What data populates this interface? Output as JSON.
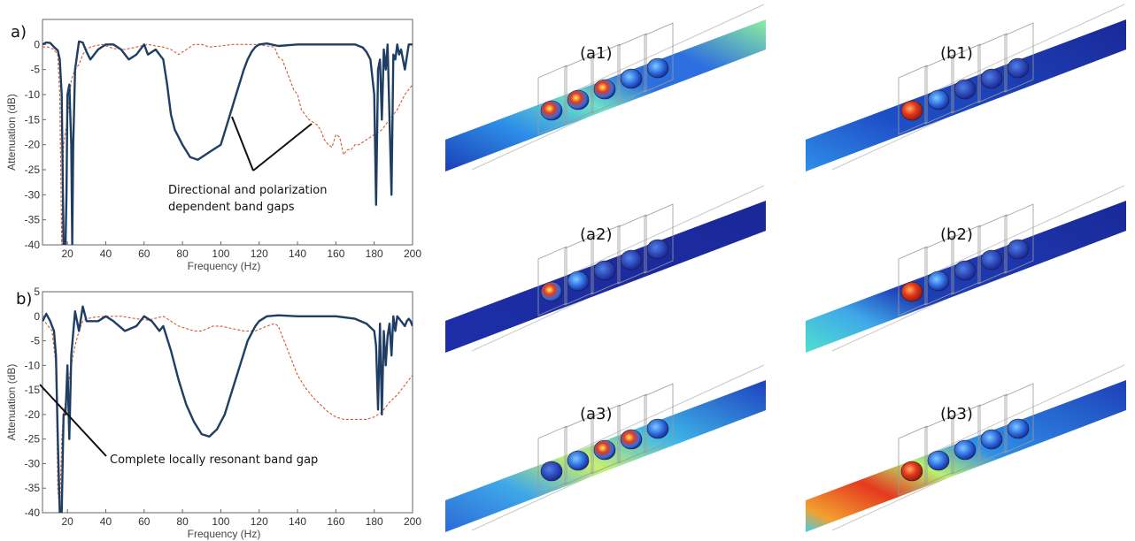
{
  "chart_data": [
    {
      "type": "line",
      "panel_label": "a)",
      "xlabel": "Frequency (Hz)",
      "ylabel": "Attenuation (dB)",
      "xlim": [
        7,
        200
      ],
      "ylim": [
        -40,
        5
      ],
      "xticks": [
        20,
        40,
        60,
        80,
        100,
        120,
        140,
        160,
        180,
        200
      ],
      "yticks": [
        0,
        -5,
        -10,
        -15,
        -20,
        -25,
        -30,
        -35,
        -40
      ],
      "grid": false,
      "annotation": [
        "Directional and polarization",
        "dependent band gaps"
      ],
      "series": [
        {
          "style": "solid",
          "color": "#1f3e63",
          "x": [
            7,
            9,
            11,
            13,
            15,
            16,
            17,
            18,
            18.5,
            19,
            19.5,
            20,
            21,
            22,
            22.5,
            23,
            24,
            26,
            28,
            30,
            32,
            36,
            40,
            44,
            48,
            52,
            56,
            60,
            62,
            66,
            70,
            72,
            74,
            76,
            80,
            84,
            88,
            92,
            96,
            100,
            104,
            108,
            112,
            114,
            116,
            118,
            120,
            124,
            130,
            140,
            150,
            160,
            170,
            174,
            176,
            178,
            180,
            181,
            182,
            183,
            184,
            185,
            186,
            187,
            188,
            189,
            190,
            191,
            192,
            193,
            194,
            196,
            198,
            200
          ],
          "y": [
            0,
            0.4,
            0.3,
            -0.5,
            -1.2,
            -3,
            -10,
            -40,
            -40,
            -40,
            -30,
            -10,
            -8,
            -20,
            -40,
            -20,
            -5,
            0.6,
            0.4,
            -1.5,
            -3,
            -1,
            0,
            0,
            -1,
            -3,
            -2,
            0,
            -2,
            -1,
            -3,
            -8,
            -14,
            -17,
            -20,
            -22.5,
            -23,
            -22,
            -21,
            -20,
            -15,
            -10,
            -5,
            -3,
            -1.5,
            -0.5,
            0,
            0.2,
            -0.3,
            0,
            0,
            0,
            0,
            -0.6,
            -1.5,
            -3,
            -10,
            -32,
            -5,
            -3,
            -15,
            -1,
            -5,
            0,
            -15,
            -30,
            -2,
            -3,
            0,
            -2,
            -1,
            -5,
            0,
            0
          ]
        },
        {
          "style": "dashed",
          "color": "#d35a30",
          "x": [
            7,
            10,
            13,
            15,
            16,
            17,
            18,
            20,
            22,
            24,
            26,
            28,
            30,
            32,
            34,
            38,
            44,
            50,
            56,
            62,
            66,
            70,
            74,
            76,
            78,
            82,
            86,
            90,
            94,
            100,
            106,
            112,
            118,
            124,
            128,
            130,
            132,
            134,
            136,
            138,
            140,
            142,
            144,
            146,
            148,
            150,
            152,
            154,
            156,
            158,
            160,
            162,
            164,
            166,
            168,
            170,
            172,
            176,
            180,
            184,
            188,
            192,
            196,
            200
          ],
          "y": [
            -0.5,
            -0.5,
            -1,
            -2,
            -10,
            -40,
            -20,
            -15,
            -7,
            -5,
            -4,
            -2,
            -1,
            -0.5,
            -0.3,
            0,
            -0.8,
            -1,
            -0.5,
            0,
            -0.3,
            -0.5,
            -1,
            -1.5,
            -2,
            -1,
            0,
            0,
            -0.5,
            -0.3,
            0,
            0,
            0,
            -0.3,
            -0.5,
            -2.5,
            -3,
            -5,
            -7,
            -9,
            -10,
            -13,
            -14,
            -15,
            -15.5,
            -16,
            -17,
            -19,
            -20,
            -20.5,
            -18,
            -18.5,
            -22,
            -21,
            -21,
            -20,
            -20,
            -19,
            -18,
            -17,
            -15,
            -13,
            -10,
            -8
          ]
        }
      ]
    },
    {
      "type": "line",
      "panel_label": "b)",
      "xlabel": "Frequency (Hz)",
      "ylabel": "Attenuation (dB)",
      "xlim": [
        7,
        200
      ],
      "ylim": [
        -40,
        5
      ],
      "xticks": [
        20,
        40,
        60,
        80,
        100,
        120,
        140,
        160,
        180,
        200
      ],
      "yticks": [
        5,
        0,
        -5,
        -10,
        -15,
        -20,
        -25,
        -30,
        -35,
        -40
      ],
      "grid": false,
      "annotation": [
        "Complete locally resonant band gap"
      ],
      "series": [
        {
          "style": "solid",
          "color": "#1f3e63",
          "x": [
            7,
            9,
            11,
            12,
            13,
            14,
            15,
            16,
            17,
            18,
            19,
            20,
            21,
            22,
            24,
            26,
            28,
            30,
            32,
            36,
            40,
            44,
            50,
            56,
            60,
            64,
            68,
            70,
            74,
            78,
            82,
            86,
            90,
            94,
            98,
            102,
            106,
            110,
            114,
            118,
            120,
            124,
            130,
            140,
            150,
            160,
            170,
            176,
            180,
            181,
            182,
            183,
            184,
            185,
            186,
            187,
            188,
            189,
            190,
            191,
            192,
            194,
            196,
            197,
            198,
            199,
            200
          ],
          "y": [
            -1,
            0.5,
            -1,
            -2,
            -3,
            -8,
            -25,
            -40,
            -40,
            -20,
            -20,
            -10,
            -25,
            -8,
            1,
            -3,
            2,
            -1,
            -1,
            -1,
            0,
            -1,
            -3,
            -2,
            0,
            -1,
            -3,
            -2,
            -7,
            -13,
            -18,
            -21.5,
            -24,
            -24.5,
            -23,
            -20,
            -15,
            -10,
            -5,
            -2,
            -1,
            0,
            0.2,
            0,
            0,
            0,
            -0.5,
            -1.5,
            -3,
            -6,
            -19,
            -1.5,
            -20,
            -3,
            -10,
            -4,
            -1.5,
            -8,
            0,
            -3,
            0,
            -1,
            -2,
            -1,
            -0.5,
            -1,
            -2
          ]
        },
        {
          "style": "dashed",
          "color": "#d35a30",
          "x": [
            7,
            10,
            12,
            14,
            15,
            16,
            17,
            18,
            20,
            22,
            24,
            26,
            28,
            30,
            34,
            40,
            48,
            56,
            62,
            68,
            70,
            74,
            78,
            82,
            86,
            90,
            96,
            100,
            106,
            112,
            118,
            124,
            128,
            130,
            132,
            134,
            136,
            138,
            140,
            144,
            148,
            152,
            156,
            160,
            164,
            168,
            172,
            176,
            180,
            184,
            188,
            192,
            196,
            200
          ],
          "y": [
            -0.5,
            -2,
            -3,
            -10,
            -35,
            -40,
            -25,
            -20,
            -15,
            -10,
            -6,
            -3,
            -1,
            -0.5,
            -0.2,
            0,
            0,
            -0.5,
            -0.8,
            -0.2,
            0,
            -1,
            -2,
            -2.5,
            -3,
            -3,
            -2,
            -2,
            -2.5,
            -3,
            -3,
            -2,
            -1.5,
            -2,
            -4,
            -6,
            -8,
            -10,
            -12,
            -14.5,
            -16.5,
            -18,
            -19.5,
            -20.5,
            -21,
            -21,
            -21,
            -21,
            -20.5,
            -19.5,
            -17.5,
            -16,
            -14,
            -12
          ]
        }
      ]
    }
  ],
  "simulations": {
    "labels": {
      "a1": "(a1)",
      "a2": "(a2)",
      "a3": "(a3)",
      "b1": "(b1)",
      "b2": "(b2)",
      "b3": "(b3)"
    },
    "colors": {
      "deep_blue": "#1a2fa0",
      "mid_blue": "#2e6fe0",
      "cyan": "#3fd0e8",
      "green": "#9ee870",
      "yellow": "#f2e84a",
      "red": "#e53a1e",
      "frame": "#9a9a9a"
    }
  }
}
